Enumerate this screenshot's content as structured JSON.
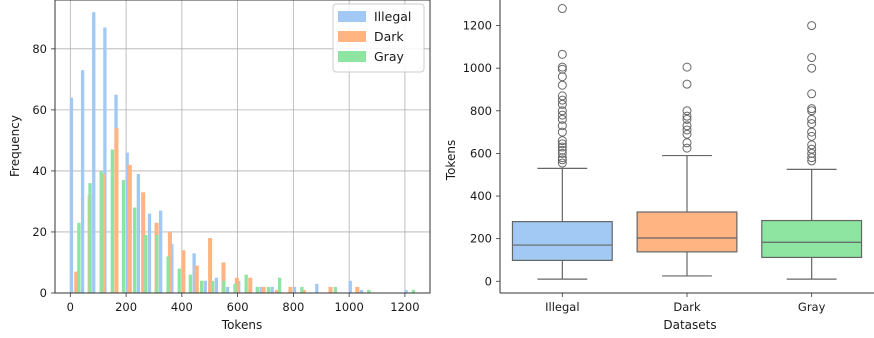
{
  "chart_data": [
    {
      "type": "bar",
      "subtype": "histogram",
      "xlabel": "Tokens",
      "ylabel": "Frequency",
      "xlim": [
        -55,
        1290
      ],
      "ylim": [
        0,
        96
      ],
      "xticks": [
        0,
        200,
        400,
        600,
        800,
        1000,
        1200
      ],
      "yticks": [
        0,
        20,
        40,
        60,
        80
      ],
      "grid": true,
      "legend_position": "top-right",
      "bin_edges": [
        0,
        40,
        80,
        120,
        160,
        200,
        240,
        280,
        320,
        360,
        400,
        440,
        480,
        520,
        560,
        600,
        640,
        680,
        720,
        760,
        800,
        840,
        880,
        920,
        960,
        1000,
        1040,
        1080,
        1120,
        1160,
        1200,
        1240
      ],
      "series": [
        {
          "name": "Illegal",
          "color": "#a1c9f4",
          "start": -2,
          "bin_width": 40,
          "values": [
            64,
            73,
            92,
            87,
            65,
            46,
            39,
            26,
            27,
            16,
            9,
            13,
            4,
            5,
            2,
            4,
            1,
            2,
            2,
            0,
            2,
            0,
            3,
            0,
            0,
            4,
            1,
            0,
            0,
            0,
            1
          ]
        },
        {
          "name": "Dark",
          "color": "#ffb482",
          "start": -2,
          "bin_width": 48,
          "values": [
            7,
            32,
            39,
            54,
            42,
            33,
            23,
            20,
            14,
            9,
            18,
            10,
            5,
            5,
            2,
            1,
            2,
            1,
            0,
            2,
            0,
            2
          ]
        },
        {
          "name": "Gray",
          "color": "#8de5a1",
          "start": -2,
          "bin_width": 40,
          "values": [
            23,
            36,
            40,
            47,
            37,
            28,
            19,
            19,
            12,
            8,
            6,
            4,
            4,
            4,
            3,
            6,
            2,
            2,
            5,
            0,
            2,
            0,
            0,
            2,
            0,
            0,
            1,
            0,
            0,
            0,
            1
          ]
        }
      ]
    },
    {
      "type": "box",
      "xlabel": "Datasets",
      "ylabel": "Tokens",
      "ylim": [
        -55,
        1320
      ],
      "yticks": [
        0,
        200,
        400,
        600,
        800,
        1000,
        1200
      ],
      "categories": [
        "Illegal",
        "Dark",
        "Gray"
      ],
      "boxes": [
        {
          "name": "Illegal",
          "color": "#a1c9f4",
          "whisker_low": 10,
          "q1": 98,
          "median": 170,
          "q3": 280,
          "whisker_high": 530,
          "outliers": [
            555,
            570,
            580,
            600,
            615,
            630,
            645,
            660,
            700,
            730,
            760,
            780,
            800,
            830,
            850,
            870,
            920,
            960,
            995,
            1005,
            1065,
            1280
          ]
        },
        {
          "name": "Dark",
          "color": "#ffb482",
          "whisker_low": 25,
          "q1": 138,
          "median": 203,
          "q3": 325,
          "whisker_high": 590,
          "outliers": [
            625,
            650,
            690,
            710,
            730,
            760,
            775,
            800,
            925,
            1005
          ]
        },
        {
          "name": "Gray",
          "color": "#8de5a1",
          "whisker_low": 10,
          "q1": 112,
          "median": 183,
          "q3": 285,
          "whisker_high": 525,
          "outliers": [
            565,
            580,
            600,
            620,
            640,
            680,
            700,
            740,
            760,
            800,
            810,
            880,
            1000,
            1050,
            1200
          ]
        }
      ]
    }
  ]
}
